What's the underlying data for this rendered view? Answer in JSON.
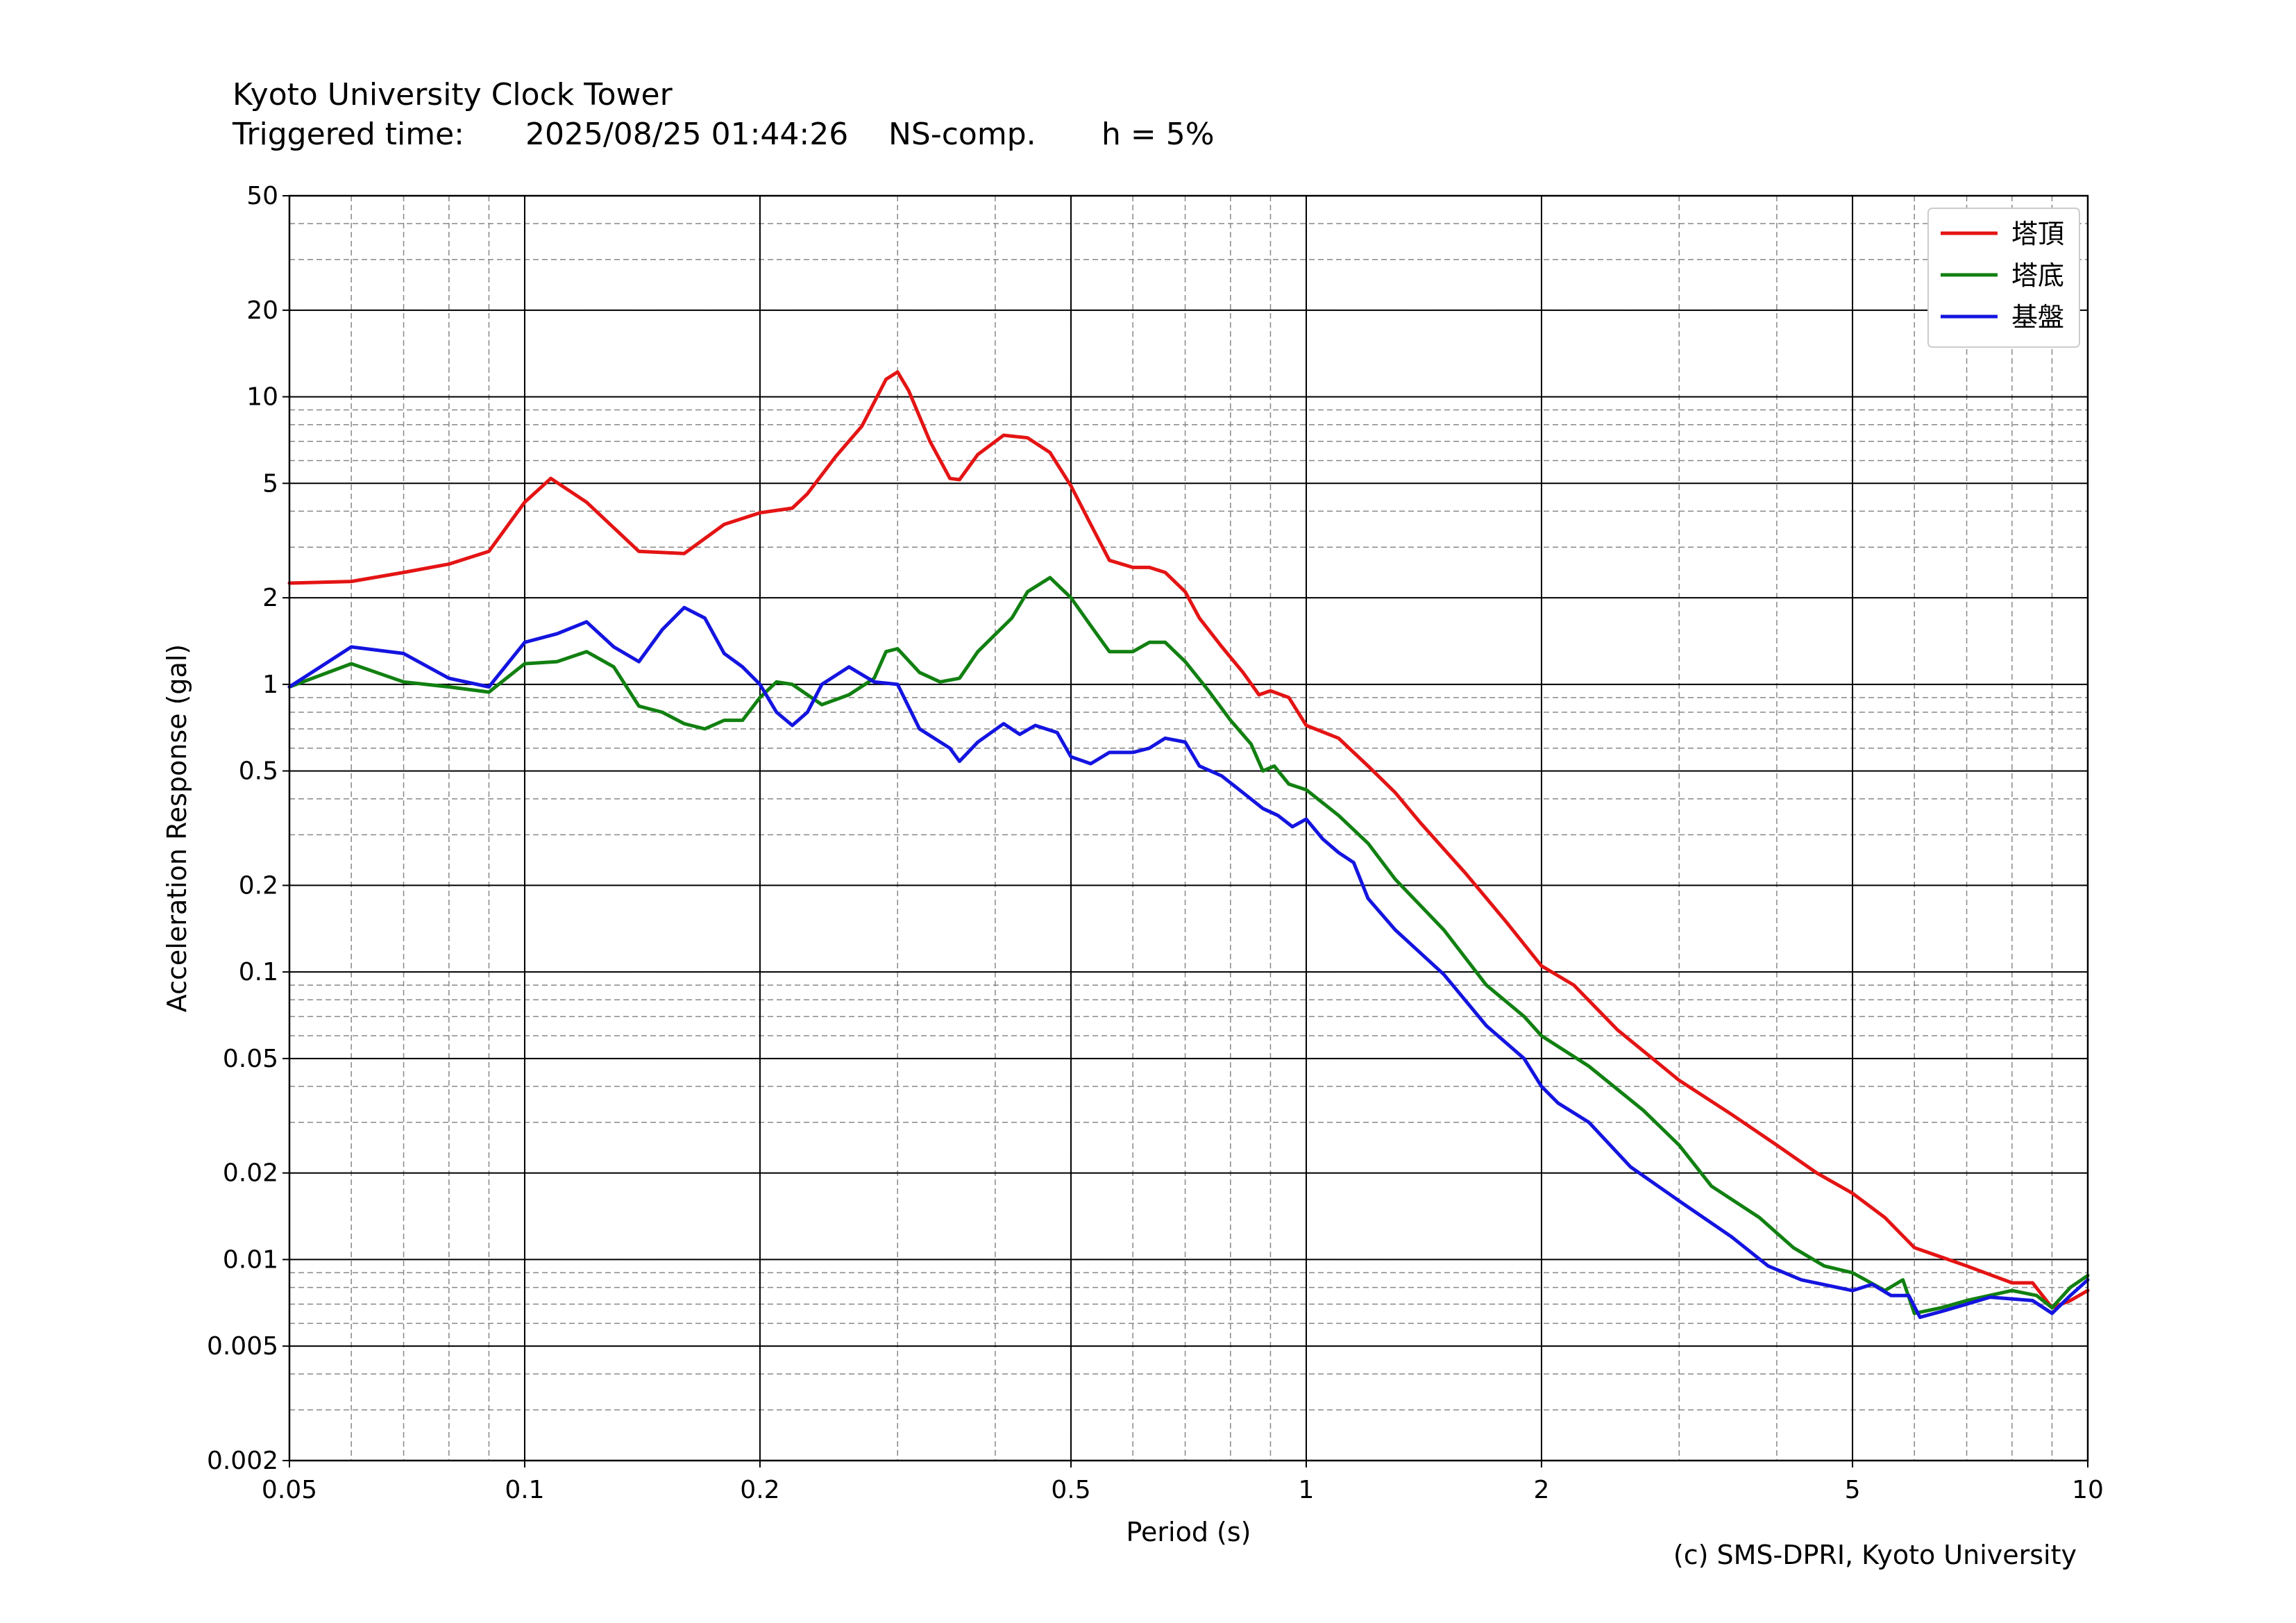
{
  "header": {
    "station": "Kyoto University Clock Tower",
    "triggered_label": "Triggered time:",
    "triggered_time": "2025/08/25 01:44:26",
    "component": "NS-comp.",
    "damping": "h = 5%"
  },
  "credit": "(c) SMS-DPRI, Kyoto University",
  "colors": {
    "red": "#e41414",
    "green": "#118011",
    "blue": "#1414e0"
  },
  "chart_data": {
    "type": "line",
    "xlabel": "Period (s)",
    "ylabel": "Acceleration Response (gal)",
    "xscale": "log",
    "yscale": "log",
    "xlim": [
      0.05,
      10
    ],
    "ylim": [
      0.002,
      50
    ],
    "grid": true,
    "legend_position": "top-right",
    "x_ticks": [
      {
        "value": 0.05,
        "label": "0.05"
      },
      {
        "value": 0.1,
        "label": "0.1"
      },
      {
        "value": 0.2,
        "label": "0.2"
      },
      {
        "value": 0.5,
        "label": "0.5"
      },
      {
        "value": 1,
        "label": "1"
      },
      {
        "value": 2,
        "label": "2"
      },
      {
        "value": 5,
        "label": "5"
      },
      {
        "value": 10,
        "label": "10"
      }
    ],
    "y_ticks": [
      {
        "value": 0.002,
        "label": "0.002"
      },
      {
        "value": 0.005,
        "label": "0.005"
      },
      {
        "value": 0.01,
        "label": "0.01"
      },
      {
        "value": 0.02,
        "label": "0.02"
      },
      {
        "value": 0.05,
        "label": "0.05"
      },
      {
        "value": 0.1,
        "label": "0.1"
      },
      {
        "value": 0.2,
        "label": "0.2"
      },
      {
        "value": 0.5,
        "label": "0.5"
      },
      {
        "value": 1,
        "label": "1"
      },
      {
        "value": 2,
        "label": "2"
      },
      {
        "value": 5,
        "label": "5"
      },
      {
        "value": 10,
        "label": "10"
      },
      {
        "value": 20,
        "label": "20"
      },
      {
        "value": 50,
        "label": "50"
      }
    ],
    "series": [
      {
        "name": "塔頂",
        "color": "#e41414",
        "points": [
          [
            0.05,
            2.25
          ],
          [
            0.06,
            2.28
          ],
          [
            0.07,
            2.45
          ],
          [
            0.08,
            2.62
          ],
          [
            0.09,
            2.9
          ],
          [
            0.1,
            4.3
          ],
          [
            0.108,
            5.2
          ],
          [
            0.12,
            4.3
          ],
          [
            0.14,
            2.9
          ],
          [
            0.16,
            2.85
          ],
          [
            0.18,
            3.6
          ],
          [
            0.2,
            3.95
          ],
          [
            0.22,
            4.1
          ],
          [
            0.23,
            4.6
          ],
          [
            0.25,
            6.2
          ],
          [
            0.27,
            7.9
          ],
          [
            0.29,
            11.5
          ],
          [
            0.3,
            12.2
          ],
          [
            0.31,
            10.5
          ],
          [
            0.33,
            7.0
          ],
          [
            0.35,
            5.2
          ],
          [
            0.36,
            5.15
          ],
          [
            0.38,
            6.3
          ],
          [
            0.41,
            7.35
          ],
          [
            0.44,
            7.2
          ],
          [
            0.47,
            6.4
          ],
          [
            0.5,
            4.9
          ],
          [
            0.53,
            3.6
          ],
          [
            0.56,
            2.7
          ],
          [
            0.6,
            2.55
          ],
          [
            0.63,
            2.55
          ],
          [
            0.66,
            2.45
          ],
          [
            0.7,
            2.1
          ],
          [
            0.73,
            1.7
          ],
          [
            0.78,
            1.35
          ],
          [
            0.83,
            1.1
          ],
          [
            0.87,
            0.92
          ],
          [
            0.9,
            0.95
          ],
          [
            0.95,
            0.9
          ],
          [
            1.0,
            0.72
          ],
          [
            1.1,
            0.65
          ],
          [
            1.2,
            0.52
          ],
          [
            1.3,
            0.42
          ],
          [
            1.4,
            0.33
          ],
          [
            1.6,
            0.22
          ],
          [
            1.8,
            0.15
          ],
          [
            2.0,
            0.105
          ],
          [
            2.2,
            0.09
          ],
          [
            2.5,
            0.063
          ],
          [
            3.0,
            0.042
          ],
          [
            3.5,
            0.032
          ],
          [
            4.0,
            0.025
          ],
          [
            4.5,
            0.02
          ],
          [
            5.0,
            0.017
          ],
          [
            5.5,
            0.014
          ],
          [
            6.0,
            0.011
          ],
          [
            7.0,
            0.0095
          ],
          [
            8.0,
            0.0083
          ],
          [
            8.5,
            0.0083
          ],
          [
            9.0,
            0.0068
          ],
          [
            9.5,
            0.0072
          ],
          [
            10,
            0.0078
          ]
        ]
      },
      {
        "name": "塔底",
        "color": "#118011",
        "points": [
          [
            0.05,
            0.98
          ],
          [
            0.06,
            1.18
          ],
          [
            0.07,
            1.02
          ],
          [
            0.08,
            0.98
          ],
          [
            0.09,
            0.94
          ],
          [
            0.1,
            1.18
          ],
          [
            0.11,
            1.2
          ],
          [
            0.12,
            1.3
          ],
          [
            0.13,
            1.15
          ],
          [
            0.14,
            0.84
          ],
          [
            0.15,
            0.8
          ],
          [
            0.16,
            0.73
          ],
          [
            0.17,
            0.7
          ],
          [
            0.18,
            0.75
          ],
          [
            0.19,
            0.75
          ],
          [
            0.2,
            0.9
          ],
          [
            0.21,
            1.02
          ],
          [
            0.22,
            1.0
          ],
          [
            0.24,
            0.85
          ],
          [
            0.26,
            0.92
          ],
          [
            0.28,
            1.05
          ],
          [
            0.29,
            1.3
          ],
          [
            0.3,
            1.33
          ],
          [
            0.32,
            1.1
          ],
          [
            0.34,
            1.02
          ],
          [
            0.36,
            1.05
          ],
          [
            0.38,
            1.3
          ],
          [
            0.42,
            1.7
          ],
          [
            0.44,
            2.1
          ],
          [
            0.47,
            2.35
          ],
          [
            0.5,
            2.0
          ],
          [
            0.53,
            1.6
          ],
          [
            0.56,
            1.3
          ],
          [
            0.6,
            1.3
          ],
          [
            0.63,
            1.4
          ],
          [
            0.66,
            1.4
          ],
          [
            0.7,
            1.2
          ],
          [
            0.75,
            0.95
          ],
          [
            0.8,
            0.75
          ],
          [
            0.85,
            0.62
          ],
          [
            0.88,
            0.5
          ],
          [
            0.91,
            0.52
          ],
          [
            0.95,
            0.45
          ],
          [
            1.0,
            0.43
          ],
          [
            1.1,
            0.35
          ],
          [
            1.2,
            0.28
          ],
          [
            1.3,
            0.21
          ],
          [
            1.5,
            0.14
          ],
          [
            1.7,
            0.09
          ],
          [
            1.9,
            0.07
          ],
          [
            2.0,
            0.06
          ],
          [
            2.3,
            0.047
          ],
          [
            2.7,
            0.033
          ],
          [
            3.0,
            0.025
          ],
          [
            3.3,
            0.018
          ],
          [
            3.8,
            0.014
          ],
          [
            4.2,
            0.011
          ],
          [
            4.6,
            0.0095
          ],
          [
            5.0,
            0.009
          ],
          [
            5.5,
            0.0078
          ],
          [
            5.8,
            0.0085
          ],
          [
            6.0,
            0.0065
          ],
          [
            6.5,
            0.0068
          ],
          [
            7.0,
            0.0072
          ],
          [
            8.0,
            0.0078
          ],
          [
            8.6,
            0.0075
          ],
          [
            9.0,
            0.0068
          ],
          [
            9.5,
            0.008
          ],
          [
            10,
            0.0088
          ]
        ]
      },
      {
        "name": "基盤",
        "color": "#1414e0",
        "points": [
          [
            0.05,
            0.98
          ],
          [
            0.06,
            1.35
          ],
          [
            0.07,
            1.28
          ],
          [
            0.08,
            1.05
          ],
          [
            0.09,
            0.98
          ],
          [
            0.1,
            1.4
          ],
          [
            0.11,
            1.5
          ],
          [
            0.12,
            1.65
          ],
          [
            0.13,
            1.35
          ],
          [
            0.14,
            1.2
          ],
          [
            0.15,
            1.55
          ],
          [
            0.16,
            1.85
          ],
          [
            0.17,
            1.7
          ],
          [
            0.18,
            1.28
          ],
          [
            0.19,
            1.15
          ],
          [
            0.2,
            1.0
          ],
          [
            0.21,
            0.8
          ],
          [
            0.22,
            0.72
          ],
          [
            0.23,
            0.8
          ],
          [
            0.24,
            1.0
          ],
          [
            0.26,
            1.15
          ],
          [
            0.28,
            1.02
          ],
          [
            0.3,
            1.0
          ],
          [
            0.32,
            0.7
          ],
          [
            0.35,
            0.6
          ],
          [
            0.36,
            0.54
          ],
          [
            0.38,
            0.63
          ],
          [
            0.41,
            0.73
          ],
          [
            0.43,
            0.67
          ],
          [
            0.45,
            0.72
          ],
          [
            0.48,
            0.68
          ],
          [
            0.5,
            0.56
          ],
          [
            0.53,
            0.53
          ],
          [
            0.56,
            0.58
          ],
          [
            0.6,
            0.58
          ],
          [
            0.63,
            0.6
          ],
          [
            0.66,
            0.65
          ],
          [
            0.7,
            0.63
          ],
          [
            0.73,
            0.52
          ],
          [
            0.78,
            0.48
          ],
          [
            0.83,
            0.42
          ],
          [
            0.88,
            0.37
          ],
          [
            0.92,
            0.35
          ],
          [
            0.96,
            0.32
          ],
          [
            1.0,
            0.34
          ],
          [
            1.05,
            0.29
          ],
          [
            1.1,
            0.26
          ],
          [
            1.15,
            0.24
          ],
          [
            1.2,
            0.18
          ],
          [
            1.3,
            0.14
          ],
          [
            1.5,
            0.098
          ],
          [
            1.7,
            0.065
          ],
          [
            1.9,
            0.05
          ],
          [
            2.0,
            0.04
          ],
          [
            2.1,
            0.035
          ],
          [
            2.3,
            0.03
          ],
          [
            2.6,
            0.021
          ],
          [
            3.0,
            0.016
          ],
          [
            3.5,
            0.012
          ],
          [
            3.9,
            0.0095
          ],
          [
            4.3,
            0.0085
          ],
          [
            5.0,
            0.0078
          ],
          [
            5.3,
            0.0082
          ],
          [
            5.6,
            0.0075
          ],
          [
            5.9,
            0.0075
          ],
          [
            6.1,
            0.0063
          ],
          [
            6.5,
            0.0066
          ],
          [
            7.0,
            0.007
          ],
          [
            7.5,
            0.0074
          ],
          [
            8.5,
            0.0072
          ],
          [
            9.0,
            0.0065
          ],
          [
            9.5,
            0.0075
          ],
          [
            10,
            0.0085
          ]
        ]
      }
    ]
  }
}
